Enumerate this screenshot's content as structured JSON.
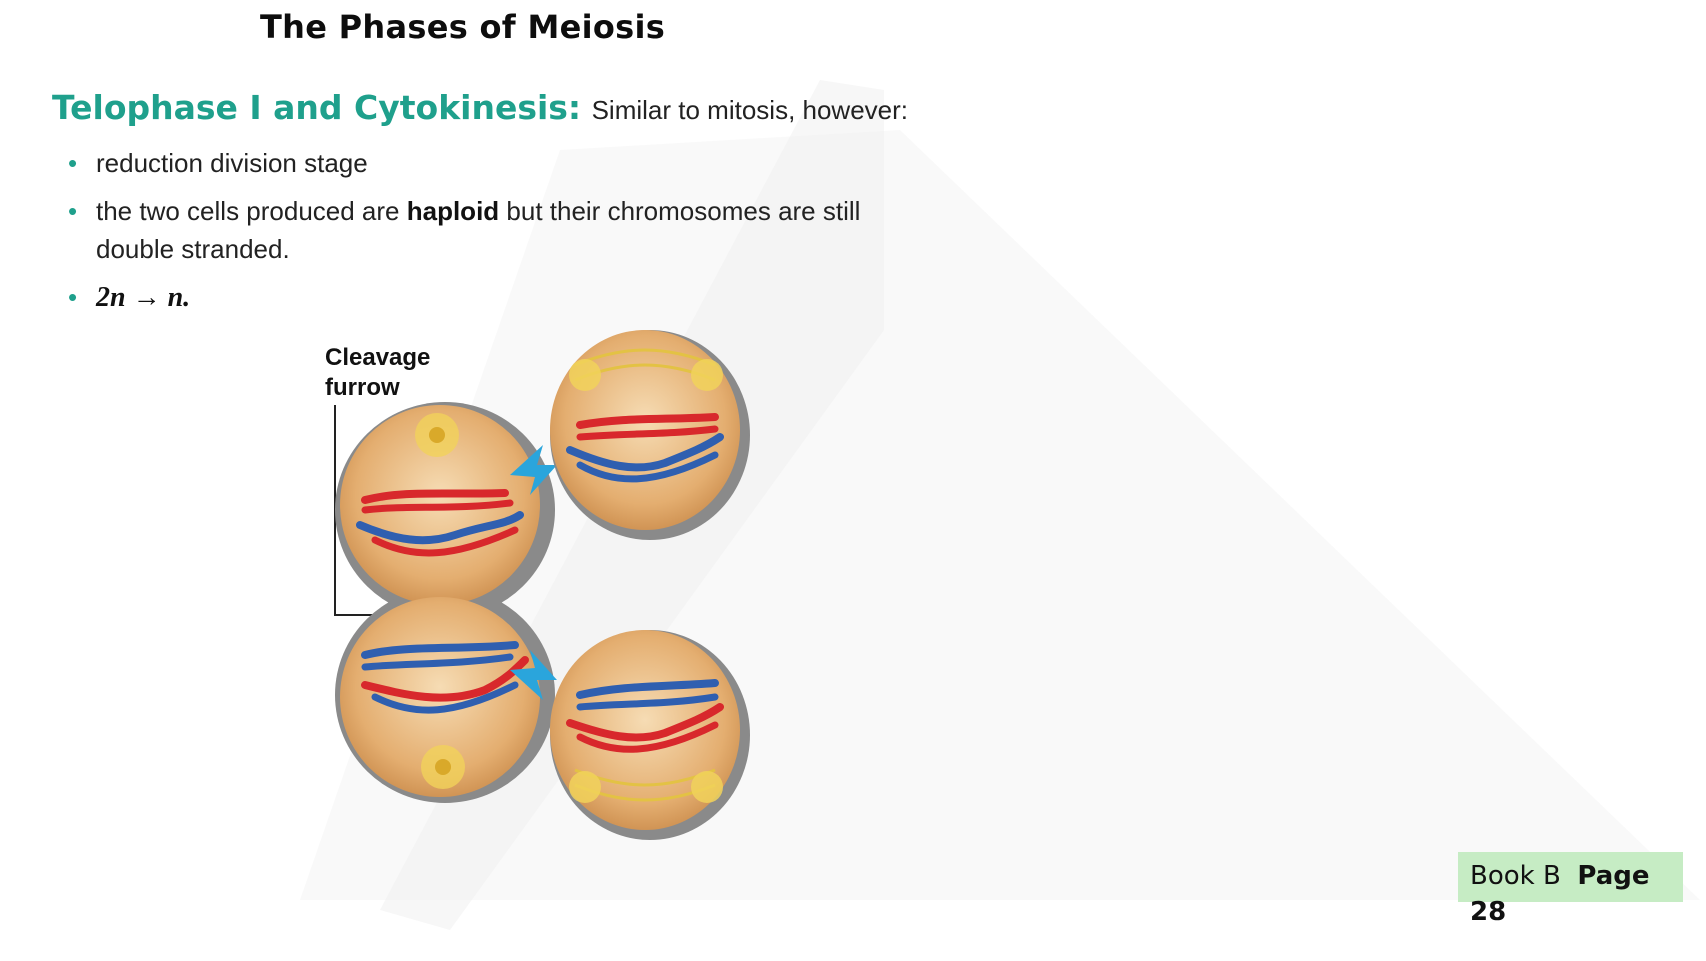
{
  "page": {
    "title": "The Phases of Meiosis"
  },
  "section": {
    "term": "Telophase I and Cytokinesis:",
    "description": "Similar to mitosis, however:",
    "bullets": {
      "b1": "reduction division stage",
      "b2_before": "the two cells produced are ",
      "b2_bold": "haploid",
      "b2_after": " but their chromosomes are still double stranded.",
      "b3": "2n → n."
    }
  },
  "figure": {
    "label_line1": "Cleavage",
    "label_line2": "furrow"
  },
  "page_reference": {
    "book": "Book B",
    "page_label": "Page",
    "page_number": "28",
    "highlight_color": "#c6ecc4"
  },
  "colors": {
    "accent_teal": "#1fa08c",
    "cell_fill": "#e7b57a",
    "chromosome_red": "#d8282c",
    "chromosome_blue": "#2f5fb0",
    "arrow_blue": "#2aa5dc"
  }
}
